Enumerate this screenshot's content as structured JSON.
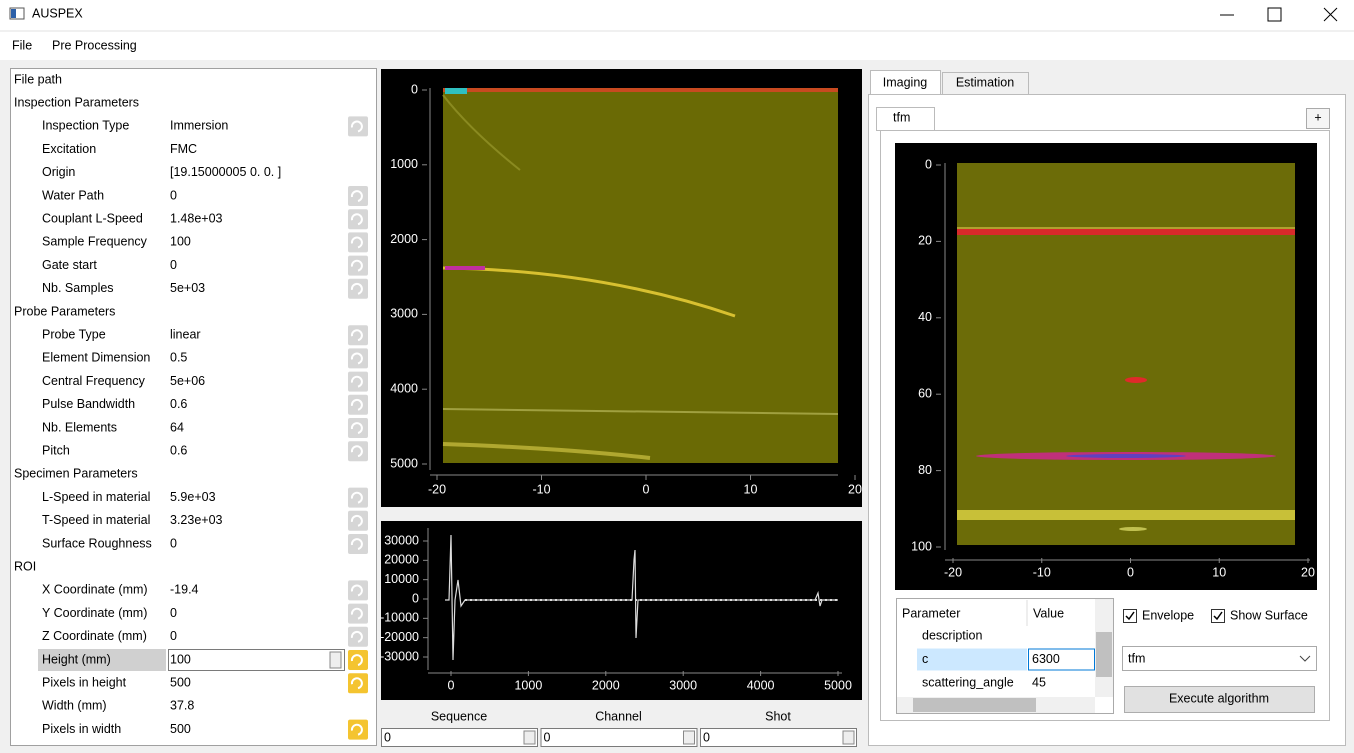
{
  "window": {
    "title": "AUSPEX"
  },
  "menu": [
    "File",
    "Pre Processing"
  ],
  "properties": [
    {
      "name": "File path"
    },
    {
      "name": "Inspection Parameters"
    },
    {
      "name": "Inspection Type",
      "value": "Immersion"
    },
    {
      "name": "Excitation",
      "value": "FMC"
    },
    {
      "name": "Origin",
      "value": "[19.15000005  0.          0.        ]"
    },
    {
      "name": "Water Path",
      "value": "0"
    },
    {
      "name": "Couplant L-Speed",
      "value": "1.48e+03"
    },
    {
      "name": "Sample Frequency",
      "value": "100"
    },
    {
      "name": "Gate start",
      "value": "0"
    },
    {
      "name": "Nb. Samples",
      "value": "5e+03"
    },
    {
      "name": "Probe Parameters"
    },
    {
      "name": "Probe Type",
      "value": "linear"
    },
    {
      "name": "Element Dimension",
      "value": "0.5"
    },
    {
      "name": "Central Frequency",
      "value": "5e+06"
    },
    {
      "name": "Pulse Bandwidth",
      "value": "0.6"
    },
    {
      "name": "Nb. Elements",
      "value": "64"
    },
    {
      "name": "Pitch",
      "value": "0.6"
    },
    {
      "name": "Specimen Parameters"
    },
    {
      "name": "L-Speed in material",
      "value": "5.9e+03"
    },
    {
      "name": "T-Speed in material",
      "value": "3.23e+03"
    },
    {
      "name": "Surface Roughness",
      "value": "0"
    },
    {
      "name": "ROI"
    },
    {
      "name": "X Coordinate (mm)",
      "value": "-19.4"
    },
    {
      "name": "Y Coordinate (mm)",
      "value": "0"
    },
    {
      "name": "Z Coordinate (mm)",
      "value": "0"
    },
    {
      "name": "Height (mm)",
      "value": "100"
    },
    {
      "name": "Pixels in height",
      "value": "500"
    },
    {
      "name": "Width (mm)",
      "value": "37.8"
    },
    {
      "name": "Pixels in width",
      "value": "500"
    }
  ],
  "bscan_plot": {
    "yticks": [
      0,
      1000,
      2000,
      3000,
      4000,
      5000
    ],
    "xticks": [
      -20,
      -10,
      0,
      10,
      20
    ]
  },
  "signal_plot": {
    "yticks": [
      30000,
      20000,
      10000,
      0,
      -10000,
      -20000,
      -30000
    ],
    "xticks": [
      0,
      1000,
      2000,
      3000,
      4000,
      5000
    ]
  },
  "spinboxes": [
    {
      "label": "Sequence",
      "value": "0"
    },
    {
      "label": "Channel",
      "value": "0"
    },
    {
      "label": "Shot",
      "value": "0"
    }
  ],
  "tabs": [
    "Imaging",
    "Estimation"
  ],
  "subtab": "tfm",
  "add_button": "+",
  "tfm_plot": {
    "yticks": [
      0,
      20,
      40,
      60,
      80,
      100
    ],
    "xticks": [
      -20,
      -10,
      0,
      10,
      20
    ]
  },
  "param_table": {
    "header": [
      "Parameter",
      "Value"
    ],
    "rows": [
      {
        "name": "description"
      },
      {
        "name": "c",
        "value": "6300"
      },
      {
        "name": "scattering_angle",
        "value": "45"
      }
    ]
  },
  "checkboxes": [
    {
      "label": "Envelope",
      "checked": true
    },
    {
      "label": "Show Surface",
      "checked": true
    }
  ],
  "algorithm_combo": "tfm",
  "run_button": "Execute algorithm"
}
